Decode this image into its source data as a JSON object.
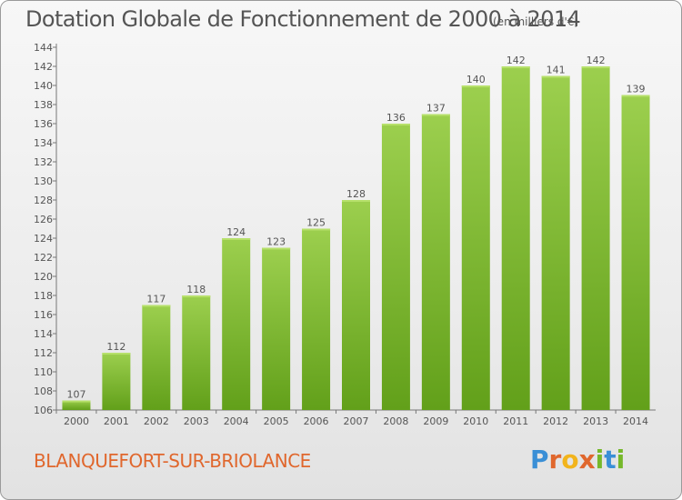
{
  "title": "Dotation Globale de Fonctionnement de 2000 à 2014",
  "subtitle": "(en milliers d'€)",
  "commune": "BLANQUEFORT-SUR-BRIOLANCE",
  "logo": {
    "text": "Proxiti",
    "letters": [
      "P",
      "r",
      "o",
      "x",
      "i",
      "t",
      "i"
    ],
    "colors": [
      "#3a8fd6",
      "#e0672d",
      "#f2b41c",
      "#e0672d",
      "#76b82a",
      "#3a8fd6",
      "#76b82a"
    ]
  },
  "colors": {
    "bar_top": "#9ccf4e",
    "bar_bottom": "#62a01a",
    "text": "#555555",
    "accent": "#e0672d"
  },
  "chart_data": {
    "type": "bar",
    "title": "Dotation Globale de Fonctionnement de 2000 à 2014",
    "subtitle": "(en milliers d'€)",
    "categories": [
      "2000",
      "2001",
      "2002",
      "2003",
      "2004",
      "2005",
      "2006",
      "2007",
      "2008",
      "2009",
      "2010",
      "2011",
      "2012",
      "2013",
      "2014"
    ],
    "values": [
      107,
      112,
      117,
      118,
      124,
      123,
      125,
      128,
      136,
      137,
      140,
      142,
      141,
      142,
      139
    ],
    "ylim": [
      106,
      144
    ],
    "yticks": [
      106,
      108,
      110,
      112,
      114,
      116,
      118,
      120,
      122,
      124,
      126,
      128,
      130,
      132,
      134,
      136,
      138,
      140,
      142,
      144
    ],
    "grid": false,
    "data_labels": true
  }
}
